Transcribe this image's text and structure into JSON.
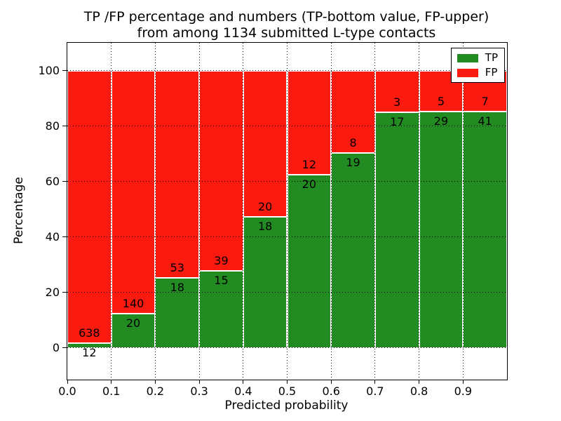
{
  "chart_data": {
    "type": "bar",
    "stacked": true,
    "normalized_to_percent": true,
    "title_line1": "TP /FP percentage and numbers (TP-bottom value, FP-upper)",
    "title_line2": "from among 1134 submitted L-type contacts",
    "xlabel": "Predicted probability",
    "ylabel": "Percentage",
    "total_contacts": 1134,
    "categories": [
      "0.0-0.1",
      "0.1-0.2",
      "0.2-0.3",
      "0.3-0.4",
      "0.4-0.5",
      "0.5-0.6",
      "0.6-0.7",
      "0.7-0.8",
      "0.8-0.9",
      "0.9-1.0"
    ],
    "series": [
      {
        "name": "TP",
        "color": "#228B22",
        "values": [
          12,
          20,
          18,
          15,
          18,
          20,
          19,
          17,
          29,
          41
        ]
      },
      {
        "name": "FP",
        "color": "#FA1A0F",
        "values": [
          638,
          140,
          53,
          39,
          20,
          12,
          8,
          3,
          5,
          7
        ]
      }
    ],
    "tp_percent": [
      1.85,
      12.5,
      25.35,
      27.78,
      47.37,
      62.5,
      70.37,
      85.0,
      85.29,
      85.42
    ],
    "x_tick_labels": [
      "0.0",
      "0.1",
      "0.2",
      "0.3",
      "0.4",
      "0.5",
      "0.6",
      "0.7",
      "0.8",
      "0.9"
    ],
    "y_ticks": [
      0,
      20,
      40,
      60,
      80,
      100
    ],
    "xlim": [
      0.0,
      1.0
    ],
    "ylim": [
      -11.4,
      110.1
    ],
    "grid": "dotted",
    "legend_position": "upper right",
    "legend_labels": [
      "TP",
      "FP"
    ]
  },
  "colors": {
    "tp_green": "#228B22",
    "fp_red": "#FA1A0F",
    "background": "#FFFFFF",
    "text": "#000000",
    "bar_edge": "#FFFFFF"
  }
}
